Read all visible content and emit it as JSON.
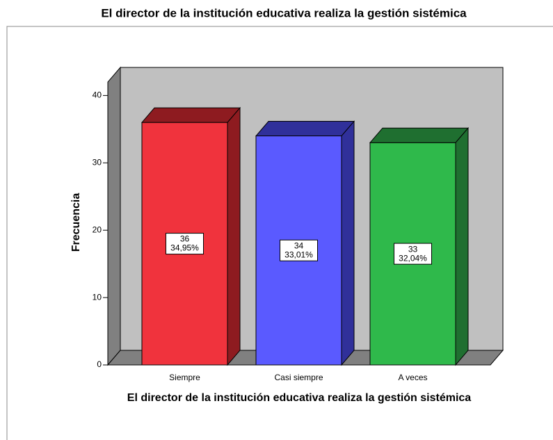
{
  "chart_data": {
    "type": "bar3d",
    "title": "El director de la institución educativa realiza la gestión sistémica",
    "x_label": "El director de la institución educativa realiza la gestión sistémica",
    "y_label": "Frecuencia",
    "categories": [
      "Siempre",
      "Casi siempre",
      "A veces"
    ],
    "values": [
      36,
      34,
      33
    ],
    "percentages": [
      34.95,
      33.01,
      32.04
    ],
    "percentage_labels": [
      "34,95%",
      "33,01%",
      "32,04%"
    ],
    "colors": [
      "#f0333d",
      "#5a5aff",
      "#2fb94b"
    ],
    "side_colors": [
      "#8e1b20",
      "#30309a",
      "#1f6f30"
    ],
    "ylim": [
      0,
      42
    ],
    "yticks": [
      0,
      10,
      20,
      30,
      40
    ]
  }
}
